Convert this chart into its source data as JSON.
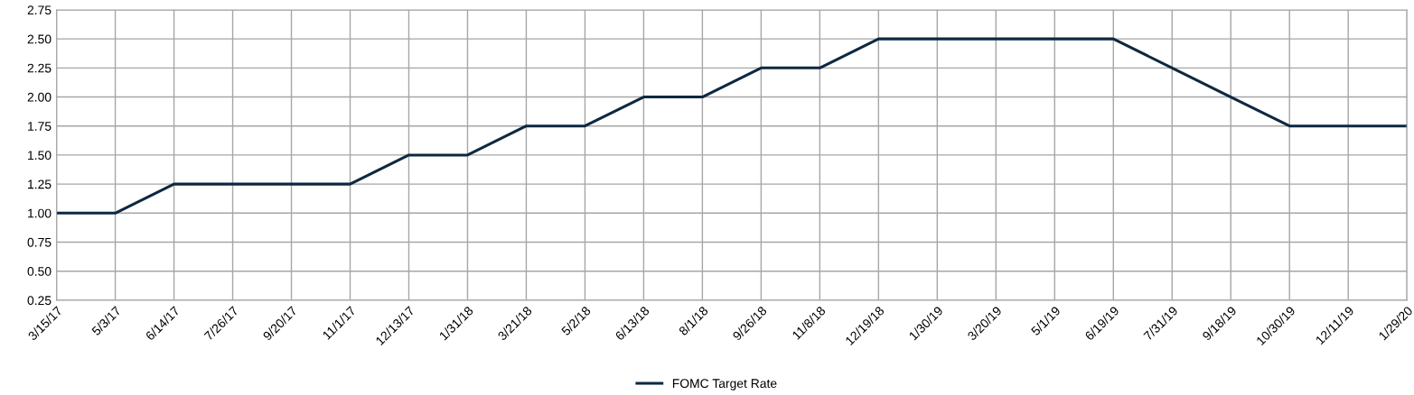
{
  "chart_data": {
    "type": "line",
    "categories": [
      "3/15/17",
      "5/3/17",
      "6/14/17",
      "7/26/17",
      "9/20/17",
      "11/1/17",
      "12/13/17",
      "1/31/18",
      "3/21/18",
      "5/2/18",
      "6/13/18",
      "8/1/18",
      "9/26/18",
      "11/8/18",
      "12/19/18",
      "1/30/19",
      "3/20/19",
      "5/1/19",
      "6/19/19",
      "7/31/19",
      "9/18/19",
      "10/30/19",
      "12/11/19",
      "1/29/20"
    ],
    "series": [
      {
        "name": "FOMC Target Rate",
        "color": "#0e2841",
        "values": [
          1.0,
          1.0,
          1.25,
          1.25,
          1.25,
          1.25,
          1.5,
          1.5,
          1.75,
          1.75,
          2.0,
          2.0,
          2.25,
          2.25,
          2.5,
          2.5,
          2.5,
          2.5,
          2.5,
          2.25,
          2.0,
          1.75,
          1.75,
          1.75
        ]
      }
    ],
    "ylim": [
      0.25,
      2.75
    ],
    "yticks": [
      {
        "value": 0.25,
        "label": "0.25"
      },
      {
        "value": 0.5,
        "label": "0.50"
      },
      {
        "value": 0.75,
        "label": "0.75"
      },
      {
        "value": 1.0,
        "label": "1.00"
      },
      {
        "value": 1.25,
        "label": "1.25"
      },
      {
        "value": 1.5,
        "label": "1.50"
      },
      {
        "value": 1.75,
        "label": "1.75"
      },
      {
        "value": 2.0,
        "label": "2.00"
      },
      {
        "value": 2.25,
        "label": "2.25"
      },
      {
        "value": 2.5,
        "label": "2.50"
      },
      {
        "value": 2.75,
        "label": "2.75"
      }
    ],
    "grid": true,
    "legend": "bottom",
    "marker": "none",
    "line_style": "solid"
  }
}
